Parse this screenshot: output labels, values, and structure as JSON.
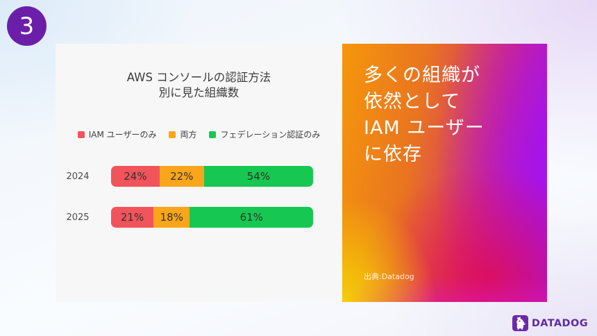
{
  "slide": {
    "step_number": "3"
  },
  "chart_data": {
    "type": "bar",
    "orientation": "horizontal",
    "stacked": true,
    "title": "AWS コンソールの認証方法 別に見た組織数",
    "title_lines": [
      "AWS コンソールの認証方法",
      "別に見た組織数"
    ],
    "categories": [
      "2024",
      "2025"
    ],
    "series": [
      {
        "name": "IAM ユーザーのみ",
        "color": "#f2545c",
        "values": [
          24,
          21
        ]
      },
      {
        "name": "両方",
        "color": "#f9a61a",
        "values": [
          22,
          18
        ]
      },
      {
        "name": "フェデレーション認証のみ",
        "color": "#16c851",
        "values": [
          54,
          61
        ]
      }
    ],
    "value_suffix": "%",
    "legend_position": "top",
    "xlim": [
      0,
      100
    ],
    "grid": false
  },
  "panel": {
    "headline_lines": [
      "多くの組織が",
      "依然として",
      "IAM ユーザー",
      "に依存"
    ],
    "source": "出典:Datadog",
    "gradient_colors": [
      "#f6970b",
      "#f7d303",
      "#e40a48",
      "#d42a78",
      "#a316ee"
    ]
  },
  "footer": {
    "brand": "DATADOG",
    "brand_color": "#5f2b9b"
  },
  "accents": {
    "badge_purple": "#6b1fa8"
  }
}
